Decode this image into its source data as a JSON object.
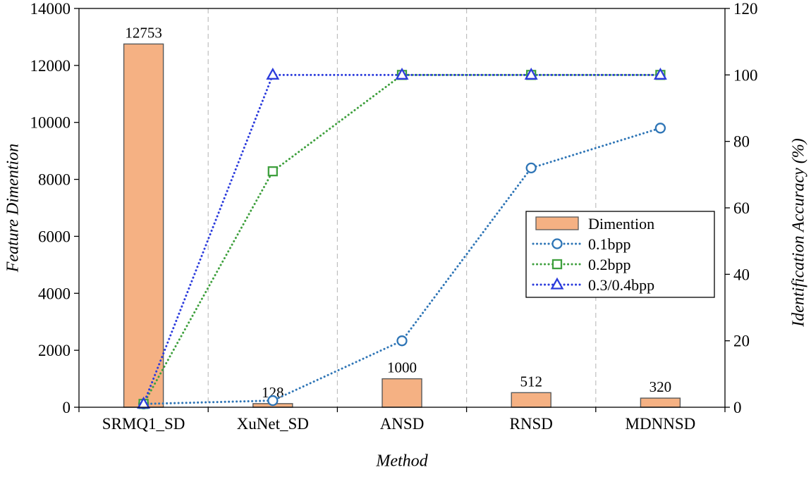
{
  "figure": {
    "background": "#ffffff"
  },
  "chart_data": {
    "type": "bar+line",
    "title": "",
    "xlabel": "Method",
    "categories": [
      "SRMQ1_SD",
      "XuNet_SD",
      "ANSD",
      "RNSD",
      "MDNNSD"
    ],
    "left_axis": {
      "label": "Feature Dimention",
      "min": 0,
      "max": 14000,
      "step": 2000,
      "ticks": [
        0,
        2000,
        4000,
        6000,
        8000,
        10000,
        12000,
        14000
      ]
    },
    "right_axis": {
      "label": "Identification Accuracy (%)",
      "min": 0,
      "max": 120,
      "step": 20,
      "ticks": [
        0,
        20,
        40,
        60,
        80,
        100,
        120
      ]
    },
    "bar_series": {
      "name": "Dimention",
      "axis": "left",
      "values": [
        12753,
        128,
        1000,
        512,
        320
      ],
      "value_labels": [
        "12753",
        "128",
        "1000",
        "512",
        "320"
      ],
      "fill": "#F5B183",
      "stroke": "#595959"
    },
    "line_series": [
      {
        "name": "0.1bpp",
        "axis": "right",
        "marker": "circle",
        "color": "#2E75B6",
        "values": [
          1,
          2,
          20,
          72,
          84
        ]
      },
      {
        "name": "0.2bpp",
        "axis": "right",
        "marker": "square",
        "color": "#3FA03E",
        "values": [
          1,
          71,
          100,
          100,
          100
        ]
      },
      {
        "name": "0.3/0.4bpp",
        "axis": "right",
        "marker": "triangle",
        "color": "#2B3BDC",
        "values": [
          1,
          100,
          100,
          100,
          100
        ]
      }
    ],
    "legend": {
      "position": "center-right",
      "entries": [
        "Dimention",
        "0.1bpp",
        "0.2bpp",
        "0.3/0.4bpp"
      ]
    },
    "grid": "vertical-dashed",
    "gridline_color": "#BFBFBF"
  }
}
